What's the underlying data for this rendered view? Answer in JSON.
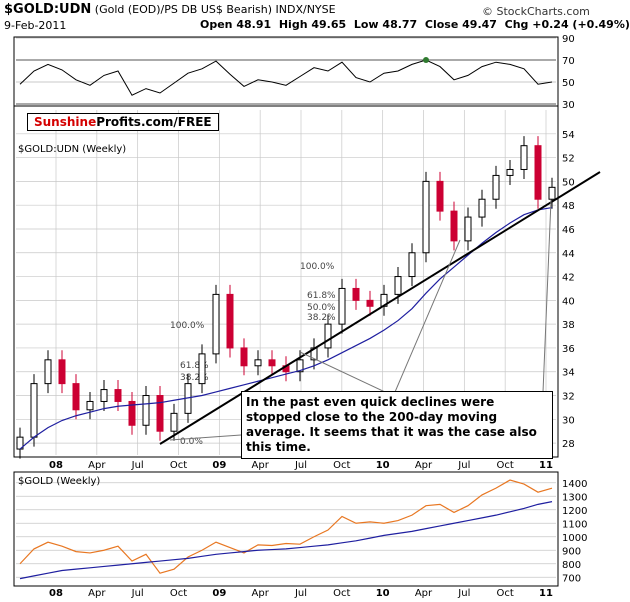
{
  "header": {
    "symbol": "$GOLD:UDN",
    "description": "(Gold (EOD)/PS DB US$ Bearish)  INDX/NYSE",
    "credit": "© StockCharts.com",
    "date": "9-Feb-2011",
    "open_label": "Open",
    "open": "48.91",
    "high_label": "High",
    "high": "49.65",
    "low_label": "Low",
    "low": "48.77",
    "close_label": "Close",
    "close": "49.47",
    "chg_label": "Chg",
    "chg": "+0.24 (+0.49%)"
  },
  "brand": {
    "part1": "Sunshine",
    "part2": "Profits.com/FREE"
  },
  "annotation": "In the past even quick declines were stopped close to the 200-day moving average. It seems that it was the case also this time.",
  "colors": {
    "price_up": "#000000",
    "price_down": "#cc0033",
    "moving_average": "#1f1fa0",
    "gold_line": "#e87722",
    "trend_line": "#000000",
    "grid": "#c8c8c8",
    "rsi_fill": "#2f7a2f"
  },
  "chart_data": [
    {
      "type": "line",
      "panel": "rsi",
      "ylim": [
        30,
        90
      ],
      "y_ticks": [
        90,
        70,
        50,
        30
      ],
      "x": [
        "2007-12",
        "2008-01",
        "2008-02",
        "2008-03",
        "2008-04",
        "2008-05",
        "2008-06",
        "2008-07",
        "2008-08",
        "2008-09",
        "2008-10",
        "2008-11",
        "2008-12",
        "2009-01",
        "2009-02",
        "2009-03",
        "2009-04",
        "2009-05",
        "2009-06",
        "2009-07",
        "2009-08",
        "2009-09",
        "2009-10",
        "2009-11",
        "2009-12",
        "2010-01",
        "2010-02",
        "2010-03",
        "2010-04",
        "2010-05",
        "2010-06",
        "2010-07",
        "2010-08",
        "2010-09",
        "2010-10",
        "2010-11",
        "2010-12",
        "2011-01",
        "2011-02"
      ],
      "values": [
        48,
        60,
        66,
        61,
        52,
        47,
        56,
        60,
        38,
        44,
        40,
        49,
        58,
        62,
        69,
        57,
        46,
        52,
        50,
        47,
        55,
        63,
        60,
        68,
        54,
        50,
        58,
        60,
        66,
        70,
        64,
        52,
        56,
        64,
        68,
        66,
        62,
        48,
        50
      ]
    },
    {
      "type": "candlestick",
      "panel": "main",
      "title": "$GOLD:UDN (Weekly)",
      "ylim": [
        27,
        56
      ],
      "y_ticks": [
        54,
        52,
        50,
        48,
        46,
        44,
        42,
        40,
        38,
        36,
        34,
        32,
        30,
        28
      ],
      "x_ticks": [
        "08",
        "Apr",
        "Jul",
        "Oct",
        "09",
        "Apr",
        "Jul",
        "Oct",
        "10",
        "Apr",
        "Jul",
        "Oct",
        "11"
      ],
      "x": [
        "2007-12",
        "2008-01",
        "2008-02",
        "2008-03",
        "2008-04",
        "2008-05",
        "2008-06",
        "2008-07",
        "2008-08",
        "2008-09",
        "2008-10",
        "2008-11",
        "2008-12",
        "2009-01",
        "2009-02",
        "2009-03",
        "2009-04",
        "2009-05",
        "2009-06",
        "2009-07",
        "2009-08",
        "2009-09",
        "2009-10",
        "2009-11",
        "2009-12",
        "2010-01",
        "2010-02",
        "2010-03",
        "2010-04",
        "2010-05",
        "2010-06",
        "2010-07",
        "2010-08",
        "2010-09",
        "2010-10",
        "2010-11",
        "2010-12",
        "2011-01",
        "2011-02"
      ],
      "close": [
        28.5,
        33.0,
        35.0,
        33.0,
        30.8,
        31.5,
        32.5,
        31.5,
        29.5,
        32.0,
        29.0,
        30.5,
        33.0,
        35.5,
        40.5,
        36.0,
        34.5,
        35.0,
        34.5,
        34.0,
        35.0,
        36.0,
        38.0,
        41.0,
        40.0,
        39.5,
        40.5,
        42.0,
        44.0,
        50.0,
        47.5,
        45.0,
        47.0,
        48.5,
        50.5,
        51.0,
        53.0,
        48.5,
        49.5
      ],
      "series": [
        {
          "name": "200-day moving average",
          "values": [
            27.5,
            28.5,
            29.3,
            29.9,
            30.3,
            30.6,
            30.9,
            31.1,
            31.2,
            31.3,
            31.4,
            31.6,
            31.8,
            32.0,
            32.3,
            32.6,
            32.9,
            33.2,
            33.5,
            33.8,
            34.1,
            34.5,
            35.0,
            35.6,
            36.2,
            36.8,
            37.5,
            38.3,
            39.3,
            40.6,
            41.8,
            42.8,
            43.8,
            44.8,
            45.7,
            46.5,
            47.2,
            47.6,
            47.8
          ]
        }
      ],
      "fibonacci_labels": [
        "100.0%",
        "61.8%",
        "50.0%",
        "38.2%",
        "100.0%",
        "61.8%",
        "38.2%",
        "0.0%"
      ]
    },
    {
      "type": "line",
      "panel": "gold",
      "title": "$GOLD (Weekly)",
      "ylim": [
        650,
        1450
      ],
      "y_ticks": [
        1400,
        1300,
        1200,
        1100,
        1000,
        900,
        800,
        700
      ],
      "x_ticks": [
        "08",
        "Apr",
        "Jul",
        "Oct",
        "09",
        "Apr",
        "Jul",
        "Oct",
        "10",
        "Apr",
        "Jul",
        "Oct",
        "11"
      ],
      "x": [
        "2007-12",
        "2008-01",
        "2008-02",
        "2008-03",
        "2008-04",
        "2008-05",
        "2008-06",
        "2008-07",
        "2008-08",
        "2008-09",
        "2008-10",
        "2008-11",
        "2008-12",
        "2009-01",
        "2009-02",
        "2009-03",
        "2009-04",
        "2009-05",
        "2009-06",
        "2009-07",
        "2009-08",
        "2009-09",
        "2009-10",
        "2009-11",
        "2009-12",
        "2010-01",
        "2010-02",
        "2010-03",
        "2010-04",
        "2010-05",
        "2010-06",
        "2010-07",
        "2010-08",
        "2010-09",
        "2010-10",
        "2010-11",
        "2010-12",
        "2011-01",
        "2011-02"
      ],
      "series": [
        {
          "name": "$GOLD",
          "values": [
            800,
            910,
            960,
            930,
            890,
            880,
            900,
            930,
            820,
            870,
            730,
            760,
            850,
            900,
            960,
            920,
            880,
            940,
            935,
            950,
            945,
            1000,
            1050,
            1150,
            1100,
            1110,
            1100,
            1120,
            1160,
            1230,
            1240,
            1180,
            1230,
            1310,
            1360,
            1420,
            1390,
            1330,
            1360
          ]
        },
        {
          "name": "200-day moving average",
          "values": [
            690,
            710,
            730,
            750,
            760,
            770,
            780,
            790,
            800,
            810,
            820,
            830,
            840,
            855,
            870,
            880,
            890,
            900,
            905,
            910,
            920,
            930,
            940,
            955,
            970,
            990,
            1010,
            1025,
            1040,
            1060,
            1080,
            1100,
            1120,
            1140,
            1160,
            1185,
            1210,
            1240,
            1260
          ]
        }
      ]
    }
  ]
}
